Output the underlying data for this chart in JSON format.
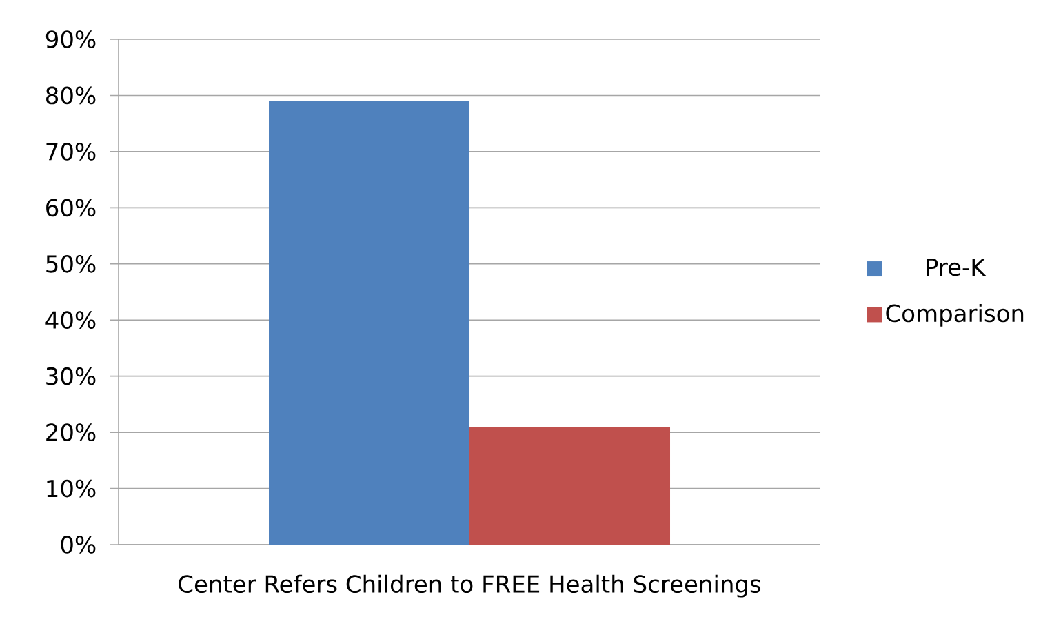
{
  "chart_data": {
    "type": "bar",
    "categories": [
      "Center Refers Children to FREE Health Screenings"
    ],
    "series": [
      {
        "name": "Pre-K",
        "color": "#4f81bd",
        "values": [
          79
        ]
      },
      {
        "name": "Comparison",
        "color": "#c0504d",
        "values": [
          21
        ]
      }
    ],
    "ylim": [
      0,
      90
    ],
    "yticks": [
      {
        "value": 0,
        "label": "0%"
      },
      {
        "value": 10,
        "label": "10%"
      },
      {
        "value": 20,
        "label": "20%"
      },
      {
        "value": 30,
        "label": "30%"
      },
      {
        "value": 40,
        "label": "40%"
      },
      {
        "value": 50,
        "label": "50%"
      },
      {
        "value": 60,
        "label": "60%"
      },
      {
        "value": 70,
        "label": "70%"
      },
      {
        "value": 80,
        "label": "80%"
      },
      {
        "value": 90,
        "label": "90%"
      }
    ],
    "grid": "y",
    "legend": "right"
  }
}
